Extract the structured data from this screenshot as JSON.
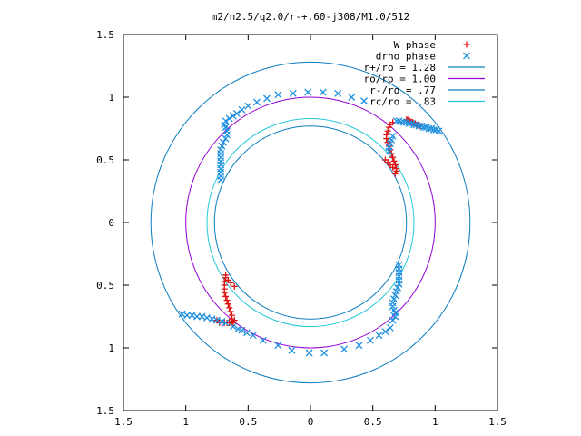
{
  "chart_data": {
    "type": "scatter",
    "title": "m2/n2.5/q2.0/r-+.60-j308/M1.0/512",
    "xlabel": "",
    "ylabel": "",
    "xlim": [
      -1.5,
      1.5
    ],
    "ylim": [
      -1.5,
      1.5
    ],
    "x_tick_values": [
      -1.5,
      -1,
      -0.5,
      0,
      0.5,
      1,
      1.5
    ],
    "x_tick_labels": [
      "1.5",
      "1",
      "0.5",
      "0",
      "0.5",
      "1",
      "1.5"
    ],
    "y_tick_values": [
      1.5,
      1,
      0.5,
      0,
      -0.5,
      -1,
      -1.5
    ],
    "y_tick_labels": [
      "1.5",
      "1",
      "0.5",
      "0",
      "0.5",
      "1",
      "1.5"
    ],
    "grid": false,
    "legend_position": "top-right",
    "circles": [
      {
        "name": "r+/ro = 1.28",
        "radius": 1.28,
        "color": "#0a7cbf"
      },
      {
        "name": "ro/ro = 1.00",
        "radius": 1.0,
        "color": "#9400d3"
      },
      {
        "name": "r-/ro = .77",
        "radius": 0.77,
        "color": "#0a7cbf"
      },
      {
        "name": "rc/ro = .83",
        "radius": 0.83,
        "color": "#22c8d8"
      }
    ],
    "series": [
      {
        "name": "W phase",
        "marker": "plus",
        "color": "#e01010",
        "points": [
          [
            0.77,
            0.82
          ],
          [
            0.78,
            0.82
          ],
          [
            0.79,
            0.81
          ],
          [
            0.8,
            0.81
          ],
          [
            0.81,
            0.8
          ],
          [
            0.82,
            0.8
          ],
          [
            0.83,
            0.79
          ],
          [
            0.84,
            0.79
          ],
          [
            0.85,
            0.78
          ],
          [
            0.86,
            0.78
          ],
          [
            0.87,
            0.77
          ],
          [
            0.88,
            0.77
          ],
          [
            0.66,
            0.8
          ],
          [
            0.64,
            0.78
          ],
          [
            0.63,
            0.76
          ],
          [
            0.62,
            0.73
          ],
          [
            0.61,
            0.7
          ],
          [
            0.61,
            0.67
          ],
          [
            0.62,
            0.64
          ],
          [
            0.63,
            0.61
          ],
          [
            0.64,
            0.58
          ],
          [
            0.65,
            0.55
          ],
          [
            0.66,
            0.52
          ],
          [
            0.67,
            0.49
          ],
          [
            0.68,
            0.46
          ],
          [
            0.69,
            0.43
          ],
          [
            0.69,
            0.41
          ],
          [
            0.68,
            0.39
          ],
          [
            0.6,
            0.5
          ],
          [
            0.62,
            0.48
          ],
          [
            0.64,
            0.46
          ],
          [
            0.66,
            0.44
          ],
          [
            -0.75,
            -0.78
          ],
          [
            -0.73,
            -0.8
          ],
          [
            -0.71,
            -0.8
          ],
          [
            -0.69,
            -0.8
          ],
          [
            -0.67,
            -0.8
          ],
          [
            -0.65,
            -0.8
          ],
          [
            -0.63,
            -0.79
          ],
          [
            -0.61,
            -0.78
          ],
          [
            -0.62,
            -0.8
          ],
          [
            -0.63,
            -0.77
          ],
          [
            -0.63,
            -0.74
          ],
          [
            -0.64,
            -0.71
          ],
          [
            -0.65,
            -0.68
          ],
          [
            -0.66,
            -0.65
          ],
          [
            -0.67,
            -0.62
          ],
          [
            -0.68,
            -0.59
          ],
          [
            -0.69,
            -0.56
          ],
          [
            -0.69,
            -0.53
          ],
          [
            -0.69,
            -0.5
          ],
          [
            -0.69,
            -0.47
          ],
          [
            -0.68,
            -0.44
          ],
          [
            -0.68,
            -0.42
          ],
          [
            -0.66,
            -0.46
          ],
          [
            -0.64,
            -0.48
          ],
          [
            -0.61,
            -0.51
          ]
        ]
      },
      {
        "name": "drho phase",
        "marker": "cross",
        "color": "#1e90e0",
        "points": [
          [
            0.69,
            0.81
          ],
          [
            0.71,
            0.81
          ],
          [
            0.73,
            0.8
          ],
          [
            0.75,
            0.8
          ],
          [
            0.77,
            0.8
          ],
          [
            0.79,
            0.79
          ],
          [
            0.81,
            0.79
          ],
          [
            0.83,
            0.78
          ],
          [
            0.85,
            0.78
          ],
          [
            0.87,
            0.77
          ],
          [
            0.89,
            0.77
          ],
          [
            0.91,
            0.76
          ],
          [
            0.93,
            0.76
          ],
          [
            0.95,
            0.75
          ],
          [
            0.97,
            0.75
          ],
          [
            0.99,
            0.74
          ],
          [
            1.01,
            0.74
          ],
          [
            1.03,
            0.73
          ],
          [
            0.66,
            0.69
          ],
          [
            0.65,
            0.66
          ],
          [
            0.64,
            0.63
          ],
          [
            0.63,
            0.6
          ],
          [
            0.63,
            0.57
          ],
          [
            -0.72,
            0.34
          ],
          [
            -0.72,
            0.37
          ],
          [
            -0.72,
            0.4
          ],
          [
            -0.72,
            0.43
          ],
          [
            -0.72,
            0.46
          ],
          [
            -0.72,
            0.49
          ],
          [
            -0.72,
            0.52
          ],
          [
            -0.72,
            0.55
          ],
          [
            -0.72,
            0.58
          ],
          [
            -0.71,
            0.61
          ],
          [
            -0.7,
            0.64
          ],
          [
            -0.68,
            0.67
          ],
          [
            -0.67,
            0.7
          ],
          [
            -0.67,
            0.73
          ],
          [
            -0.68,
            0.76
          ],
          [
            -0.69,
            0.78
          ],
          [
            -0.68,
            0.81
          ],
          [
            -0.65,
            0.83
          ],
          [
            -0.62,
            0.85
          ],
          [
            -0.59,
            0.87
          ],
          [
            -0.55,
            0.9
          ],
          [
            -0.5,
            0.93
          ],
          [
            -0.43,
            0.96
          ],
          [
            -0.35,
            0.99
          ],
          [
            -0.26,
            1.02
          ],
          [
            -0.14,
            1.03
          ],
          [
            -0.02,
            1.04
          ],
          [
            0.1,
            1.04
          ],
          [
            0.22,
            1.03
          ],
          [
            0.33,
            1.0
          ],
          [
            0.43,
            0.97
          ],
          [
            0.71,
            -0.34
          ],
          [
            0.71,
            -0.37
          ],
          [
            0.71,
            -0.4
          ],
          [
            0.71,
            -0.43
          ],
          [
            0.71,
            -0.46
          ],
          [
            0.71,
            -0.49
          ],
          [
            0.7,
            -0.52
          ],
          [
            0.69,
            -0.55
          ],
          [
            0.68,
            -0.58
          ],
          [
            0.67,
            -0.61
          ],
          [
            0.66,
            -0.64
          ],
          [
            0.66,
            -0.67
          ],
          [
            0.67,
            -0.7
          ],
          [
            0.68,
            -0.72
          ],
          [
            0.68,
            -0.75
          ],
          [
            0.66,
            -0.78
          ],
          [
            -0.68,
            -0.8
          ],
          [
            -0.71,
            -0.79
          ],
          [
            -0.75,
            -0.78
          ],
          [
            -0.79,
            -0.77
          ],
          [
            -0.83,
            -0.76
          ],
          [
            -0.87,
            -0.75
          ],
          [
            -0.91,
            -0.75
          ],
          [
            -0.95,
            -0.74
          ],
          [
            -0.99,
            -0.74
          ],
          [
            -1.03,
            -0.73
          ],
          [
            -0.62,
            -0.83
          ],
          [
            -0.58,
            -0.85
          ],
          [
            -0.55,
            -0.86
          ],
          [
            -0.51,
            -0.88
          ],
          [
            -0.46,
            -0.9
          ],
          [
            -0.38,
            -0.94
          ],
          [
            -0.26,
            -0.98
          ],
          [
            -0.15,
            -1.02
          ],
          [
            -0.01,
            -1.04
          ],
          [
            0.11,
            -1.04
          ],
          [
            0.27,
            -1.01
          ],
          [
            0.39,
            -0.98
          ],
          [
            0.48,
            -0.94
          ],
          [
            0.55,
            -0.9
          ],
          [
            0.6,
            -0.87
          ],
          [
            0.64,
            -0.84
          ]
        ]
      }
    ]
  }
}
